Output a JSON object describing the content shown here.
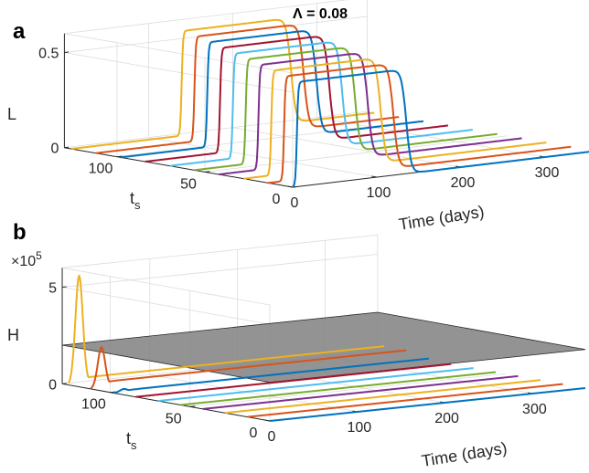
{
  "title": "Λ = 0.08",
  "colors": [
    "#0072BD",
    "#D95319",
    "#EDB120",
    "#7E2F8E",
    "#77AC30",
    "#4DBEEE",
    "#A2142F",
    "#0072BD",
    "#D95319",
    "#EDB120"
  ],
  "chart_data": [
    {
      "panel": "a",
      "type": "line3d",
      "zlabel": "L",
      "ylabel": "t",
      "ylabel_subscript": "s",
      "xlabel": "Time (days)",
      "xlim": [
        0,
        360
      ],
      "ylim": [
        0,
        130
      ],
      "zlim": [
        0,
        0.6
      ],
      "xticks": [
        "0",
        "100",
        "200",
        "300"
      ],
      "yticks": [
        "0",
        "50",
        "100"
      ],
      "zticks": [
        "0",
        "0.5"
      ],
      "grid": true,
      "series_ts": [
        0,
        14,
        28,
        42,
        56,
        70,
        84,
        98,
        112,
        126
      ],
      "series_peak": 0.55,
      "series_rise_offset_days": 5,
      "series_duration_days": 130
    },
    {
      "panel": "b",
      "type": "line3d",
      "zlabel": "H",
      "zscale_label": "×10",
      "zscale_exponent": "5",
      "ylabel": "t",
      "ylabel_subscript": "s",
      "xlabel": "Time (days)",
      "xlim": [
        0,
        360
      ],
      "ylim": [
        0,
        130
      ],
      "zlim": [
        0,
        600000
      ],
      "xticks": [
        "0",
        "100",
        "200",
        "300"
      ],
      "yticks": [
        "0",
        "50",
        "100"
      ],
      "zticks": [
        "0",
        "5"
      ],
      "grid": true,
      "threshold_plane": 200000,
      "threshold_color": "#808080",
      "series_ts": [
        0,
        14,
        28,
        42,
        56,
        70,
        84,
        98,
        112,
        126
      ],
      "series_peak": [
        0,
        0,
        0,
        0,
        0,
        0,
        0,
        15000,
        210000,
        560000
      ],
      "series_peak_day": 12
    }
  ]
}
